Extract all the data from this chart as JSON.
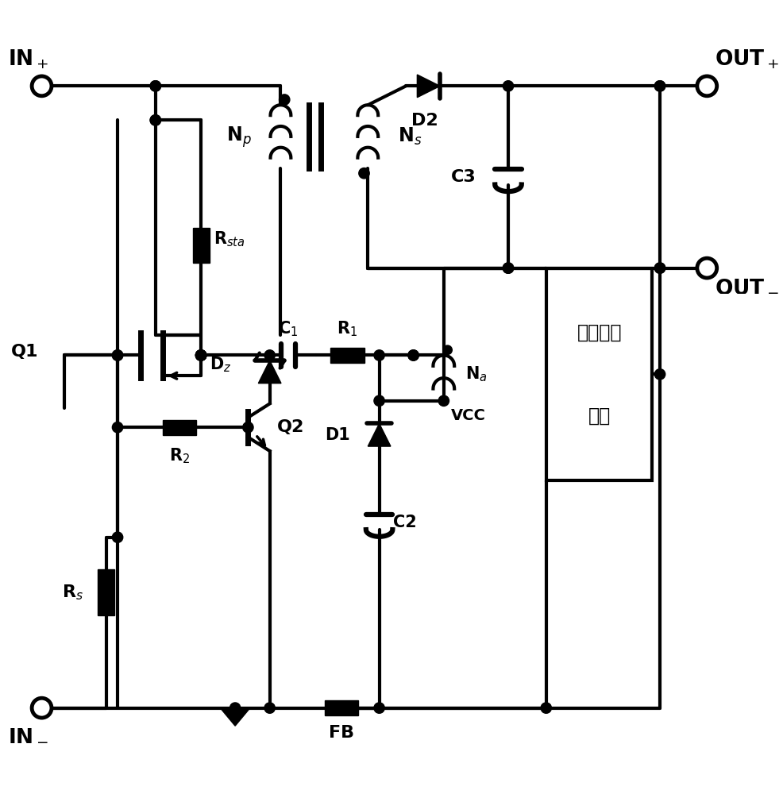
{
  "bg": "#ffffff",
  "lc": "#000000",
  "lw": 3.0,
  "labels": {
    "IN_plus": "IN$_+$",
    "IN_minus": "IN$_-$",
    "OUT_plus": "OUT$_+$",
    "OUT_minus": "OUT$_-$",
    "Np": "N$_p$",
    "Ns": "N$_s$",
    "Na": "N$_a$",
    "D1": "D1",
    "D2": "D2",
    "Dz": "D$_z$",
    "C1": "C$_1$",
    "C2": "C2",
    "C3": "C3",
    "R1": "R$_1$",
    "R2": "R$_2$",
    "Rs": "R$_s$",
    "Rsta": "R$_{sta}$",
    "Q1": "Q1",
    "Q2": "Q2",
    "VCC": "VCC",
    "FB": "FB",
    "feedback": "隔离反馈\n网络"
  }
}
